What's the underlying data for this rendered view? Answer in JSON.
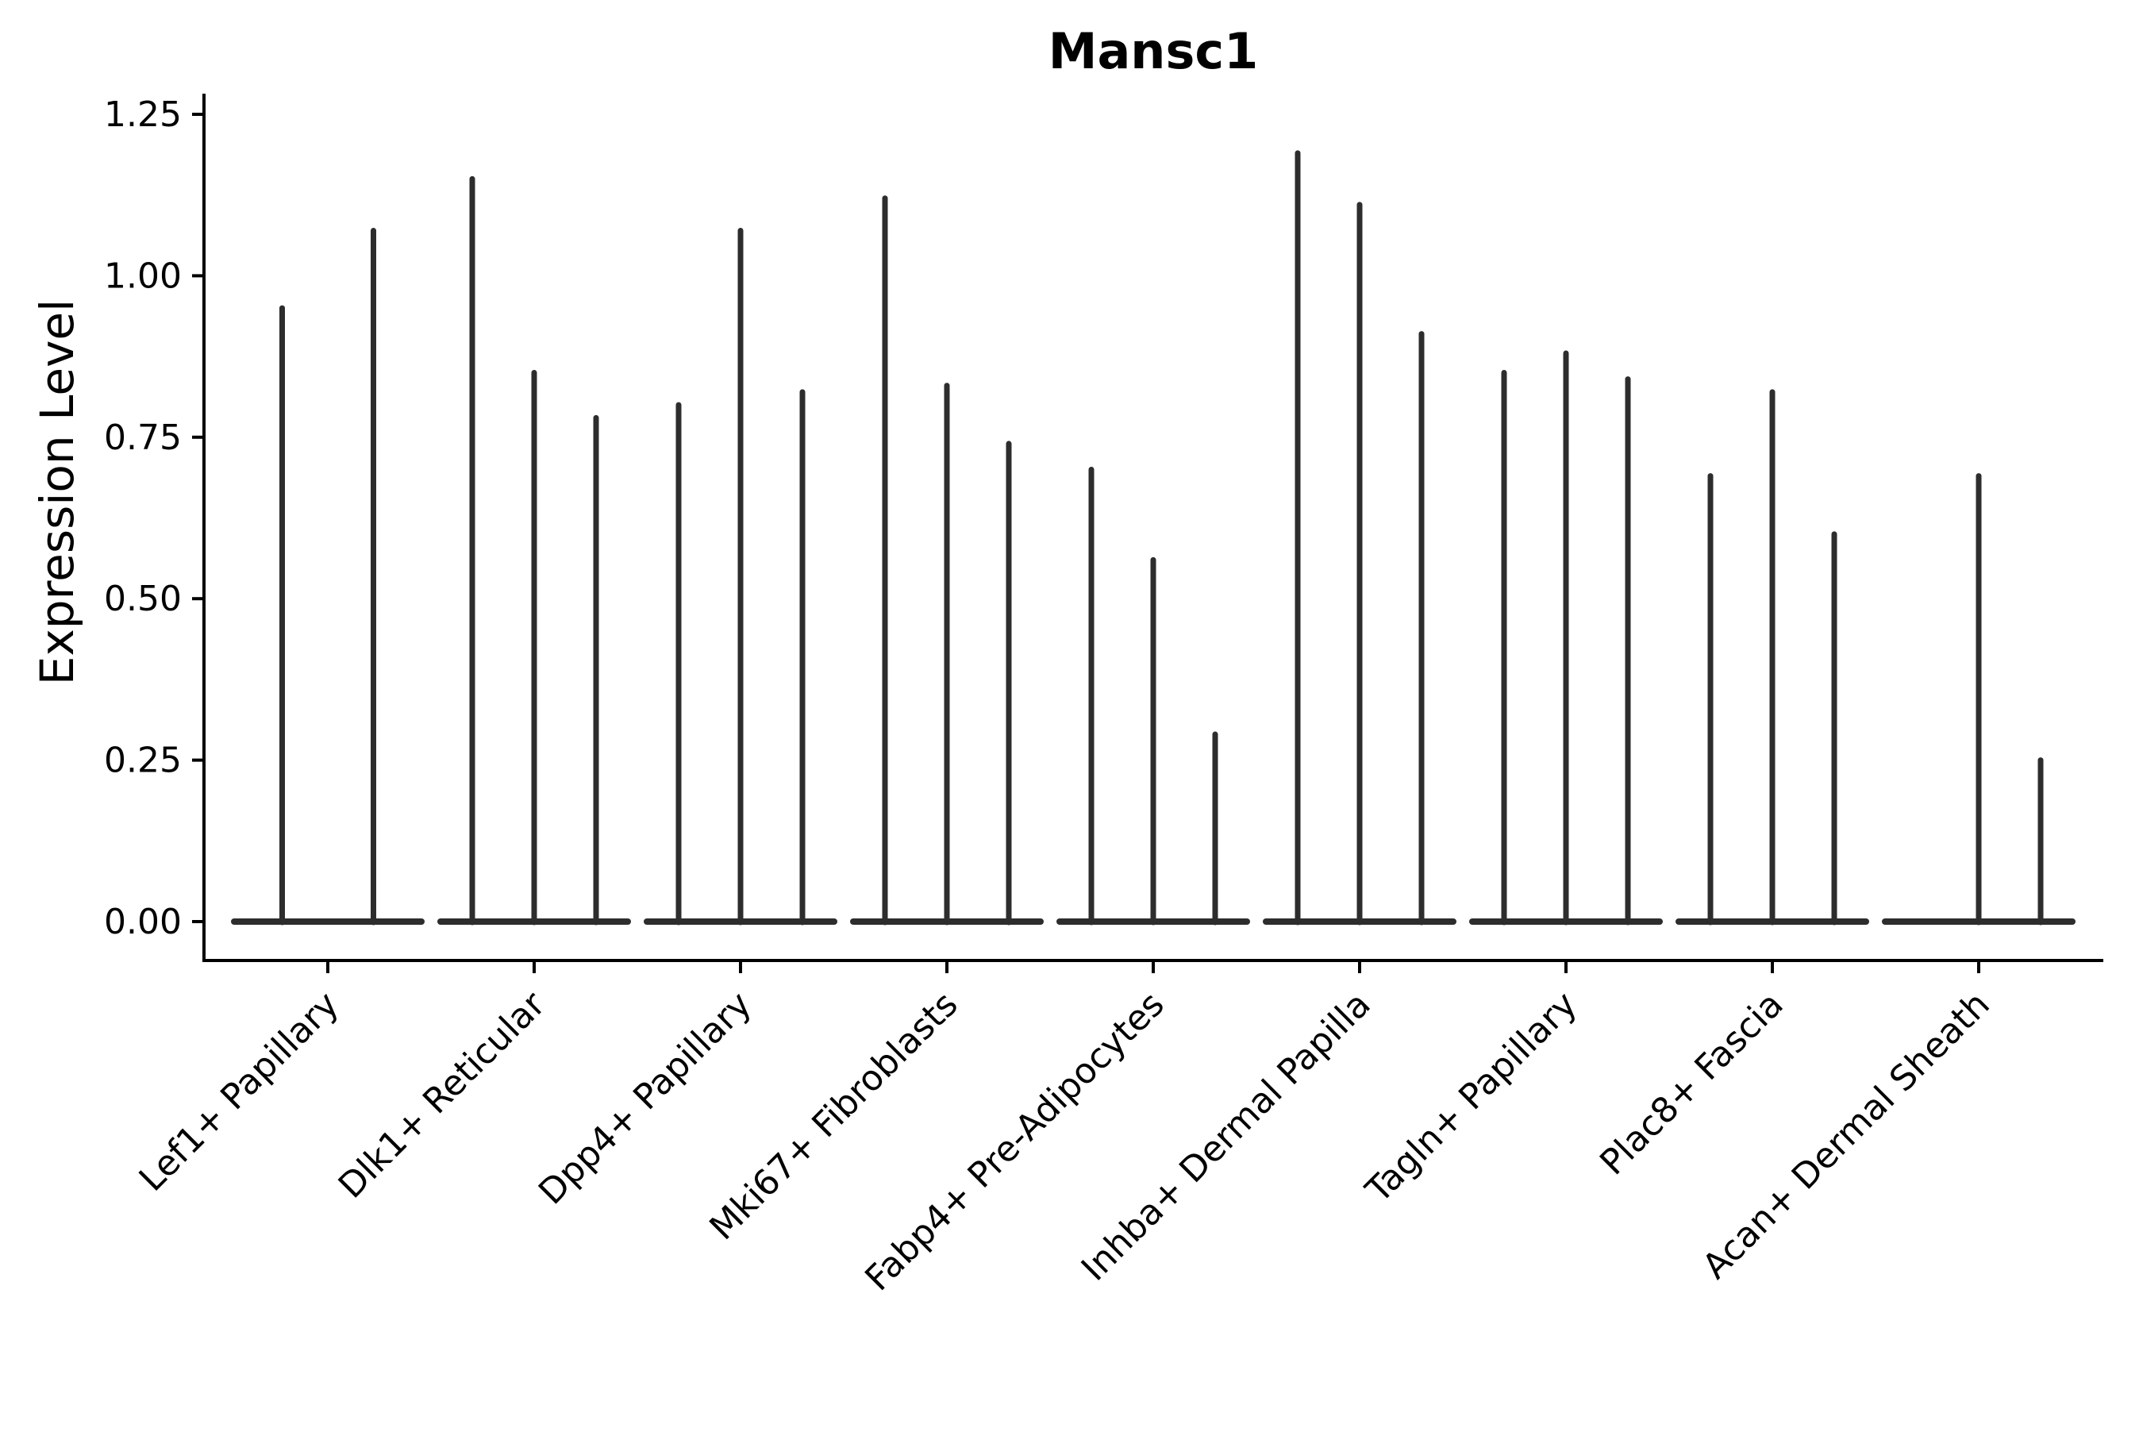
{
  "figure": {
    "title": "Mansc1",
    "y_axis_label": "Expression Level"
  },
  "chart_data": {
    "type": "violin",
    "title": "Mansc1",
    "xlabel": "",
    "ylabel": "Expression Level",
    "ylim": [
      0,
      1.25
    ],
    "yticks": [
      0.0,
      0.25,
      0.5,
      0.75,
      1.0,
      1.25
    ],
    "ytick_labels": [
      "0.00",
      "0.25",
      "0.50",
      "0.75",
      "1.00",
      "1.25"
    ],
    "grid": false,
    "legend_position": "none",
    "x_tick_label_rotation_deg": 45,
    "categories": [
      "Lef1+ Papillary",
      "Dlk1+ Reticular",
      "Dpp4+ Papillary",
      "Mki67+ Fibroblasts",
      "Fabp4+ Pre-Adipocytes",
      "Inhba+ Dermal Papilla",
      "Tagln+ Papillary",
      "Plac8+ Fascia",
      "Acan+ Dermal Sheath"
    ],
    "groups": [
      {
        "category": "Lef1+ Papillary",
        "violin_max_expression": [
          0.95,
          1.07
        ]
      },
      {
        "category": "Dlk1+ Reticular",
        "violin_max_expression": [
          1.15,
          0.85,
          0.78
        ]
      },
      {
        "category": "Dpp4+ Papillary",
        "violin_max_expression": [
          0.8,
          1.07,
          0.82
        ]
      },
      {
        "category": "Mki67+ Fibroblasts",
        "violin_max_expression": [
          1.12,
          0.83,
          0.74
        ]
      },
      {
        "category": "Fabp4+ Pre-Adipocytes",
        "violin_max_expression": [
          0.7,
          0.56,
          0.29
        ]
      },
      {
        "category": "Inhba+ Dermal Papilla",
        "violin_max_expression": [
          1.19,
          1.11,
          0.91
        ]
      },
      {
        "category": "Tagln+ Papillary",
        "violin_max_expression": [
          0.85,
          0.88,
          0.84
        ]
      },
      {
        "category": "Plac8+ Fascia",
        "violin_max_expression": [
          0.69,
          0.82,
          0.6
        ]
      },
      {
        "category": "Acan+ Dermal Sheath",
        "violin_max_expression": [
          0.0,
          0.69,
          0.25
        ]
      }
    ],
    "violins_all_anchored_at": 0.0,
    "style": {
      "violin_color": "#2d2d2d",
      "axis_color": "#000000",
      "text_color": "#000000",
      "background_color": "#ffffff"
    }
  }
}
